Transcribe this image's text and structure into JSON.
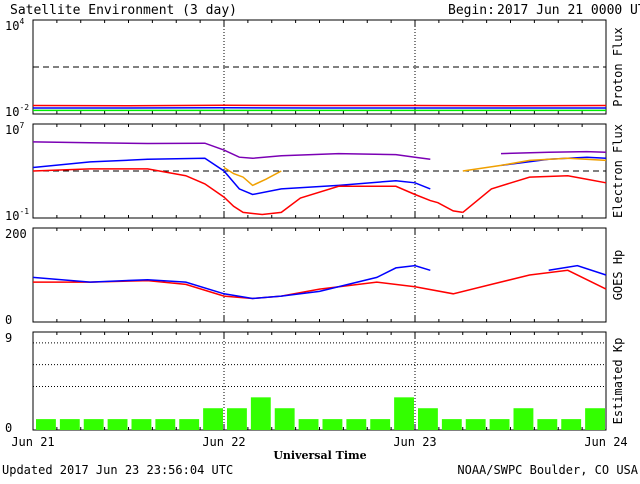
{
  "header": {
    "title": "Satellite Environment (3 day)",
    "begin_label": "Begin:",
    "begin_value": "2017 Jun 21 0000 UTC"
  },
  "footer": {
    "updated": "Updated 2017 Jun 23 23:56:04 UTC",
    "credit": "NOAA/SWPC Boulder, CO USA"
  },
  "xaxis": {
    "label": "Universal Time",
    "ticks": [
      "Jun 21",
      "Jun 22",
      "Jun 23",
      "Jun 24"
    ],
    "range_days": [
      0,
      3
    ]
  },
  "colors": {
    "red": "#ff0000",
    "blue": "#0000ff",
    "green": "#00ee00",
    "purple": "#7b00b4",
    "orange": "#f0a000",
    "kp_bar": "#33ff00"
  },
  "chart_data": [
    {
      "type": "line",
      "panel": "proton",
      "ylabel": "Proton Flux",
      "yscale": "log",
      "ylim": [
        0.01,
        10000
      ],
      "ytick_labels": {
        "top": "10",
        "top_exp": "4",
        "bottom": "10",
        "bottom_exp": "-2"
      },
      "threshold": 10,
      "series": [
        {
          "color": "red",
          "x": [
            0,
            0.5,
            1,
            1.5,
            2,
            2.5,
            3
          ],
          "y": [
            0.035,
            0.034,
            0.036,
            0.035,
            0.035,
            0.034,
            0.035
          ]
        },
        {
          "color": "blue",
          "x": [
            0,
            0.5,
            1,
            1.5,
            2,
            2.5,
            3
          ],
          "y": [
            0.024,
            0.024,
            0.025,
            0.024,
            0.024,
            0.024,
            0.024
          ]
        },
        {
          "color": "green",
          "x": [
            0,
            0.5,
            1,
            1.5,
            2,
            2.5,
            3
          ],
          "y": [
            0.017,
            0.017,
            0.017,
            0.017,
            0.017,
            0.017,
            0.017
          ]
        }
      ]
    },
    {
      "type": "line",
      "panel": "electron",
      "ylabel": "Electron Flux",
      "yscale": "log",
      "ylim": [
        0.1,
        10000000
      ],
      "ytick_labels": {
        "top": "10",
        "top_exp": "7",
        "bottom": "10",
        "bottom_exp": "-1"
      },
      "threshold": 1000,
      "series": [
        {
          "color": "purple",
          "x": [
            0,
            0.3,
            0.6,
            0.9,
            1.0,
            1.08,
            1.15,
            1.3,
            1.6,
            1.9,
            2.0,
            2.08
          ],
          "y": [
            300000,
            250000,
            220000,
            230000,
            60000,
            15000,
            12000,
            20000,
            30000,
            25000,
            15000,
            10000
          ]
        },
        {
          "color": "purple",
          "x": [
            2.45,
            2.7,
            2.9,
            3.0
          ],
          "y": [
            30000,
            40000,
            45000,
            40000
          ]
        },
        {
          "color": "blue",
          "x": [
            0,
            0.3,
            0.6,
            0.9,
            1.0,
            1.08,
            1.15,
            1.3,
            1.6,
            1.9,
            2.0,
            2.08
          ],
          "y": [
            2000,
            6000,
            10000,
            12000,
            1000,
            30,
            10,
            30,
            60,
            150,
            100,
            30
          ]
        },
        {
          "color": "blue",
          "x": [
            2.45,
            2.7,
            2.9,
            3.0
          ],
          "y": [
            3000,
            10000,
            15000,
            12000
          ]
        },
        {
          "color": "orange",
          "x": [
            1.0,
            1.05,
            1.1,
            1.15,
            1.22,
            1.3
          ],
          "y": [
            2000,
            600,
            300,
            60,
            200,
            1000
          ]
        },
        {
          "color": "orange",
          "x": [
            2.25,
            2.45,
            2.6,
            2.8,
            3.0
          ],
          "y": [
            1000,
            3000,
            8000,
            12000,
            8000
          ]
        },
        {
          "color": "red",
          "x": [
            0,
            0.3,
            0.6,
            0.8,
            0.9,
            1.0,
            1.05,
            1.1,
            1.2,
            1.3,
            1.4,
            1.6,
            1.9,
            2.0,
            2.08,
            2.12,
            2.2,
            2.25
          ],
          "y": [
            1000,
            1500,
            1500,
            400,
            80,
            6,
            1,
            0.3,
            0.2,
            0.3,
            5,
            50,
            50,
            10,
            3,
            2,
            0.4,
            0.3
          ]
        },
        {
          "color": "red",
          "x": [
            2.25,
            2.4,
            2.6,
            2.8,
            2.9,
            3.0
          ],
          "y": [
            0.3,
            30,
            300,
            400,
            200,
            100
          ]
        }
      ]
    },
    {
      "type": "line",
      "panel": "goes_hp",
      "ylabel": "GOES Hp",
      "ylim": [
        0,
        200
      ],
      "ytick_labels": {
        "top": "200",
        "bottom": "0"
      },
      "series": [
        {
          "color": "red",
          "x": [
            0,
            0.3,
            0.6,
            0.8,
            1.0,
            1.15,
            1.3,
            1.5,
            1.8,
            2.0,
            2.2,
            2.4,
            2.6,
            2.8,
            3.0
          ],
          "y": [
            85,
            85,
            88,
            80,
            55,
            50,
            55,
            70,
            85,
            75,
            60,
            80,
            100,
            110,
            70
          ]
        },
        {
          "color": "blue",
          "x": [
            0,
            0.3,
            0.6,
            0.8,
            1.0,
            1.15,
            1.3,
            1.5,
            1.8,
            1.9,
            2.0,
            2.08
          ],
          "y": [
            95,
            85,
            90,
            85,
            60,
            50,
            55,
            65,
            95,
            115,
            120,
            110
          ]
        },
        {
          "color": "blue",
          "x": [
            2.7,
            2.85,
            3.0
          ],
          "y": [
            110,
            120,
            100
          ]
        }
      ]
    },
    {
      "type": "bar",
      "panel": "kp",
      "ylabel": "Estimated Kp",
      "ylim": [
        0,
        9
      ],
      "ytick_labels": {
        "top": "9",
        "bottom": "0"
      },
      "values": [
        1,
        1,
        1,
        1,
        1,
        1,
        1,
        2,
        2,
        3,
        2,
        1,
        1,
        1,
        1,
        3,
        2,
        1,
        1,
        1,
        2,
        1,
        1,
        2,
        0
      ]
    }
  ]
}
